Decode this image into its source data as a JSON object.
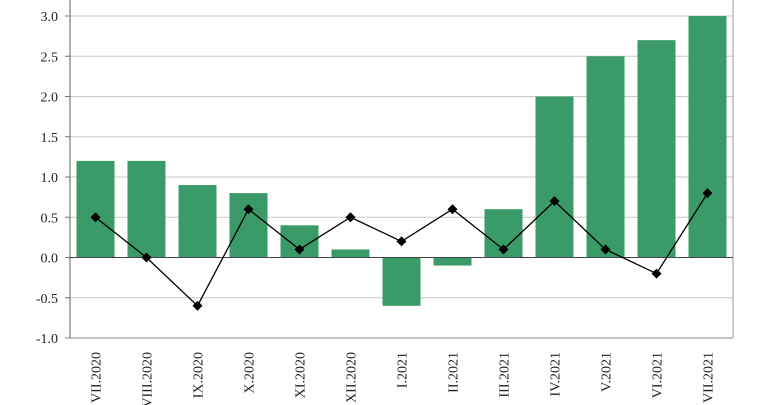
{
  "chart_data": {
    "type": "bar",
    "title": "",
    "xlabel": "",
    "ylabel": "",
    "ylim": [
      -1.0,
      3.0
    ],
    "yticks": [
      "-1.0",
      "-0.5",
      "0.0",
      "0.5",
      "1.0",
      "1.5",
      "2.0",
      "2.5",
      "3.0"
    ],
    "grid": true,
    "categories": [
      "VII.2020",
      "VIII.2020",
      "IX.2020",
      "X.2020",
      "XI.2020",
      "XII.2020",
      "I.2021",
      "II.2021",
      "III.2021",
      "IV.2021",
      "V.2021",
      "VI.2021",
      "VII.2021"
    ],
    "series": [
      {
        "name": "bars",
        "type": "bar",
        "color": "#3a9a68",
        "values": [
          1.2,
          1.2,
          0.9,
          0.8,
          0.4,
          0.1,
          -0.6,
          -0.1,
          0.6,
          2.0,
          2.5,
          2.7,
          3.0
        ]
      },
      {
        "name": "line",
        "type": "line",
        "color": "#000000",
        "values": [
          0.5,
          0.0,
          -0.6,
          0.6,
          0.1,
          0.5,
          0.2,
          0.6,
          0.1,
          0.7,
          0.1,
          -0.2,
          0.8
        ]
      }
    ]
  }
}
